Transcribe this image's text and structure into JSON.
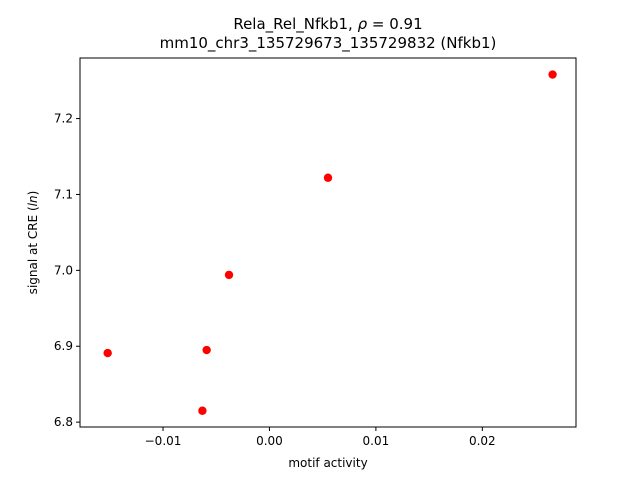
{
  "chart_data": {
    "type": "scatter",
    "title_line1_prefix": "Rela_Rel_Nfkb1, ",
    "title_rho_symbol": "ρ",
    "title_rho_rest": " = 0.91",
    "title_line2": "mm10_chr3_135729673_135729832 (Nfkb1)",
    "xlabel": "motif activity",
    "ylabel_prefix": "signal at CRE (",
    "ylabel_italic": "ln",
    "ylabel_suffix": ")",
    "xlim": [
      -0.0178,
      0.0288
    ],
    "ylim": [
      6.7936,
      7.2798
    ],
    "xticks": [
      -0.01,
      0.0,
      0.01,
      0.02
    ],
    "xtick_labels": [
      "−0.01",
      "0.00",
      "0.01",
      "0.02"
    ],
    "yticks": [
      6.8,
      6.9,
      7.0,
      7.1,
      7.2
    ],
    "ytick_labels": [
      "6.8",
      "6.9",
      "7.0",
      "7.1",
      "7.2"
    ],
    "marker_color": "#ff0000",
    "points": [
      {
        "x": -0.0152,
        "y": 6.891
      },
      {
        "x": -0.0063,
        "y": 6.815
      },
      {
        "x": -0.0059,
        "y": 6.895
      },
      {
        "x": -0.0038,
        "y": 6.994
      },
      {
        "x": 0.0055,
        "y": 7.122
      },
      {
        "x": 0.0266,
        "y": 7.258
      }
    ],
    "grid": false,
    "legend": "none"
  }
}
